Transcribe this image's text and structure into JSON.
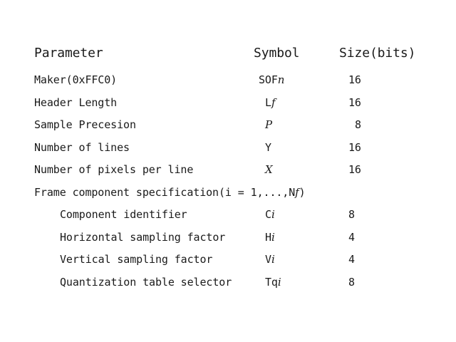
{
  "table": {
    "headers": {
      "parameter": "Parameter",
      "symbol": "Symbol",
      "size": "Size(bits)"
    },
    "rows": [
      {
        "parameter": "Maker(0xFFC0)",
        "symbol_prefix": "SOF",
        "symbol_italic": "n",
        "size": "16",
        "indent": false
      },
      {
        "parameter": "Header Length",
        "symbol_prefix": "L",
        "symbol_italic": "f",
        "size": "16",
        "indent": false
      },
      {
        "parameter": "Sample Precesion",
        "symbol_prefix": "",
        "symbol_italic": "P",
        "size": "8",
        "indent": false
      },
      {
        "parameter": "Number of lines",
        "symbol_prefix": "Y",
        "symbol_italic": "",
        "size": "16",
        "indent": false
      },
      {
        "parameter": "Number of pixels per line",
        "symbol_prefix": "",
        "symbol_italic": "X",
        "size": "16",
        "indent": false
      },
      {
        "parameter_prefix": "Frame component specification(i = 1,...,N",
        "parameter_italic": "f",
        "parameter_suffix": ")"
      },
      {
        "parameter": "Component identifier",
        "symbol_prefix": "C",
        "symbol_italic": "i",
        "size": "8",
        "indent": true
      },
      {
        "parameter": "Horizontal sampling factor",
        "symbol_prefix": "H",
        "symbol_italic": "i",
        "size": "4",
        "indent": true
      },
      {
        "parameter": "Vertical sampling factor",
        "symbol_prefix": "V",
        "symbol_italic": "i",
        "size": "4",
        "indent": true
      },
      {
        "parameter": "Quantization table selector",
        "symbol_prefix": "Tq",
        "symbol_italic": "i",
        "size": "8",
        "indent": true
      }
    ]
  }
}
